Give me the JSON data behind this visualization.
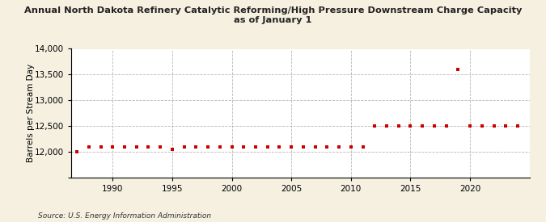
{
  "title": "Annual North Dakota Refinery Catalytic Reforming/High Pressure Downstream Charge Capacity\nas of January 1",
  "ylabel": "Barrels per Stream Day",
  "source": "Source: U.S. Energy Information Administration",
  "background_color": "#f5f0e0",
  "plot_bg_color": "#ffffff",
  "grid_color": "#b0b0b0",
  "marker_color": "#cc0000",
  "years": [
    1987,
    1988,
    1989,
    1990,
    1991,
    1992,
    1993,
    1994,
    1995,
    1996,
    1997,
    1998,
    1999,
    2000,
    2001,
    2002,
    2003,
    2004,
    2005,
    2006,
    2007,
    2008,
    2009,
    2010,
    2011,
    2012,
    2013,
    2014,
    2015,
    2016,
    2017,
    2018,
    2019,
    2020,
    2021,
    2022,
    2023,
    2024
  ],
  "values": [
    12000,
    12100,
    12100,
    12100,
    12100,
    12100,
    12100,
    12100,
    12050,
    12100,
    12100,
    12100,
    12100,
    12100,
    12100,
    12100,
    12100,
    12100,
    12100,
    12100,
    12100,
    12100,
    12100,
    12100,
    12100,
    12500,
    12500,
    12500,
    12500,
    12500,
    12500,
    12500,
    13600,
    12500,
    12500,
    12500,
    12500,
    12500
  ],
  "ylim": [
    11500,
    14000
  ],
  "yticks": [
    11500,
    12000,
    12500,
    13000,
    13500,
    14000
  ],
  "xlim": [
    1986.5,
    2025
  ],
  "xticks": [
    1990,
    1995,
    2000,
    2005,
    2010,
    2015,
    2020
  ]
}
